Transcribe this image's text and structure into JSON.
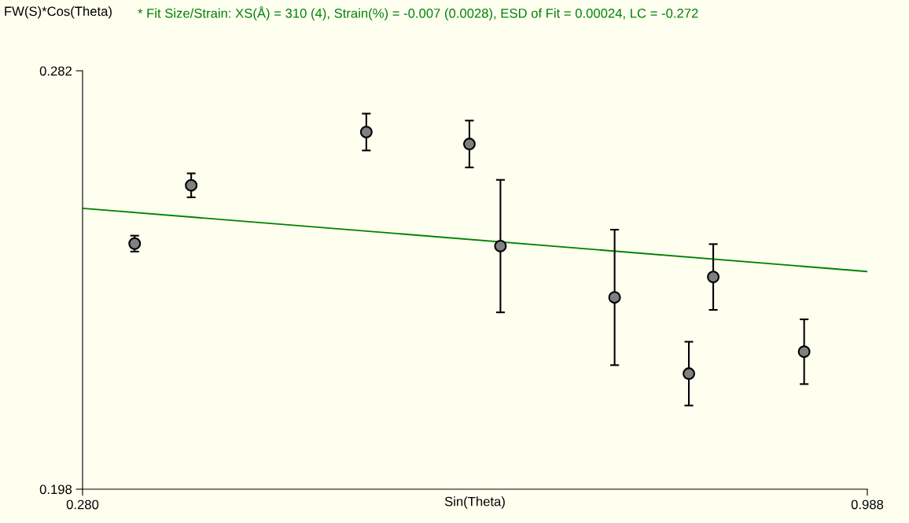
{
  "chart_data": {
    "type": "scatter",
    "title": "* Fit Size/Strain: XS(Å) = 310 (4), Strain(%) = -0.007 (0.0028), ESD of Fit = 0.00024, LC = -0.272",
    "xlabel": "Sin(Theta)",
    "ylabel": "FW(S)*Cos(Theta)",
    "x": [
      0.327,
      0.378,
      0.536,
      0.629,
      0.657,
      0.76,
      0.827,
      0.849,
      0.931
    ],
    "series": [
      {
        "marker": "circle",
        "color": "#808080",
        "values": [
          0.2473,
          0.259,
          0.2697,
          0.2673,
          0.2468,
          0.2365,
          0.2212,
          0.2406,
          0.2256
        ],
        "errors": [
          0.0016,
          0.0024,
          0.0037,
          0.0047,
          0.0133,
          0.0136,
          0.0064,
          0.0066,
          0.0065
        ]
      },
      {
        "type": "line",
        "marker": "none",
        "color": "#008000",
        "x": [
          0.28,
          0.988
        ],
        "values": [
          0.2544,
          0.2417
        ]
      }
    ],
    "xlim": [
      0.28,
      0.988
    ],
    "ylim": [
      0.198,
      0.282
    ],
    "xticks": [
      {
        "value": 0.28,
        "label": "0.280"
      },
      {
        "value": 0.988,
        "label": "0.988"
      }
    ],
    "yticks": [
      {
        "value": 0.198,
        "label": "0.198"
      },
      {
        "value": 0.282,
        "label": "0.282"
      }
    ],
    "grid": false,
    "legend": false,
    "line_style": "solid"
  }
}
